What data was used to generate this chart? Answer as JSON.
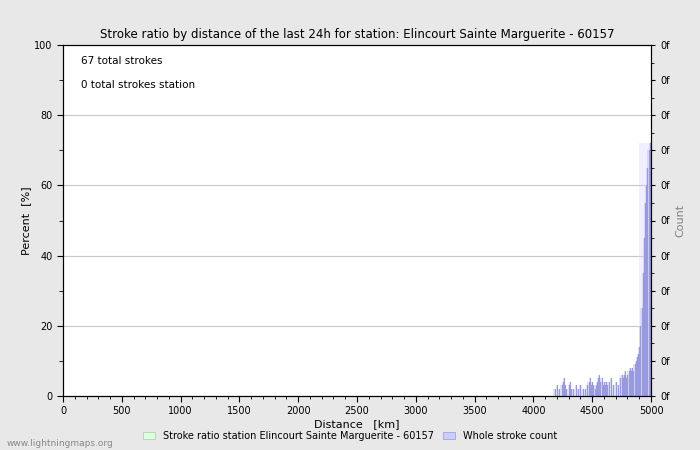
{
  "title": "Stroke ratio by distance of the last 24h for station: Elincourt Sainte Marguerite - 60157",
  "annotation_line1": "67 total strokes",
  "annotation_line2": "0 total strokes station",
  "xlabel": "Distance   [km]",
  "ylabel_left": "Percent  [%]",
  "ylabel_right": "Count",
  "xlim": [
    0,
    5000
  ],
  "ylim_left": [
    0,
    100
  ],
  "right_ytick_positions": [
    0,
    10,
    20,
    30,
    40,
    50,
    60,
    70,
    80,
    90,
    100
  ],
  "right_ytick_labels": [
    "0f",
    "0f",
    "0f",
    "0f",
    "0f",
    "0f",
    "0f",
    "0f",
    "0f",
    "0f",
    "0f"
  ],
  "left_major_ticks": [
    0,
    20,
    40,
    60,
    80,
    100
  ],
  "left_minor_ticks": [
    10,
    30,
    50,
    70,
    90
  ],
  "x_major_ticks": [
    0,
    500,
    1000,
    1500,
    2000,
    2500,
    3000,
    3500,
    4000,
    4500,
    5000
  ],
  "watermark": "www.lightningmaps.org",
  "legend_green_label": "Stroke ratio station Elincourt Sainte Marguerite - 60157",
  "legend_blue_label": "Whole stroke count",
  "background_color": "#e8e8e8",
  "plot_bg_color": "#ffffff",
  "grid_color": "#c8c8c8",
  "stroke_bars_x": [
    4180,
    4200,
    4220,
    4240,
    4250,
    4260,
    4270,
    4280,
    4300,
    4310,
    4320,
    4340,
    4360,
    4380,
    4400,
    4420,
    4440,
    4460,
    4470,
    4480,
    4490,
    4500,
    4510,
    4520,
    4530,
    4540,
    4550,
    4560,
    4570,
    4580,
    4590,
    4600,
    4610,
    4620,
    4630,
    4640,
    4660,
    4680,
    4700,
    4720,
    4740,
    4750,
    4760,
    4770,
    4780,
    4790,
    4800,
    4810,
    4820,
    4830,
    4840,
    4850,
    4860,
    4870,
    4880,
    4890,
    4900,
    4910,
    4920,
    4930,
    4940,
    4950,
    4960,
    4970,
    4980,
    4990,
    5000
  ],
  "stroke_bars_y": [
    2,
    3,
    2,
    3,
    4,
    5,
    3,
    2,
    3,
    4,
    2,
    2,
    3,
    2,
    3,
    2,
    2,
    3,
    4,
    5,
    3,
    4,
    3,
    2,
    3,
    4,
    5,
    6,
    4,
    5,
    3,
    4,
    3,
    4,
    3,
    4,
    5,
    3,
    4,
    3,
    5,
    6,
    5,
    6,
    7,
    5,
    6,
    7,
    8,
    7,
    8,
    7,
    9,
    10,
    11,
    12,
    14,
    20,
    25,
    35,
    45,
    55,
    60,
    65,
    70,
    72,
    72
  ],
  "stroke_color": "#9999dd",
  "stroke_fill_color": "#ccccff",
  "stroke_fill_alpha": 0.6
}
